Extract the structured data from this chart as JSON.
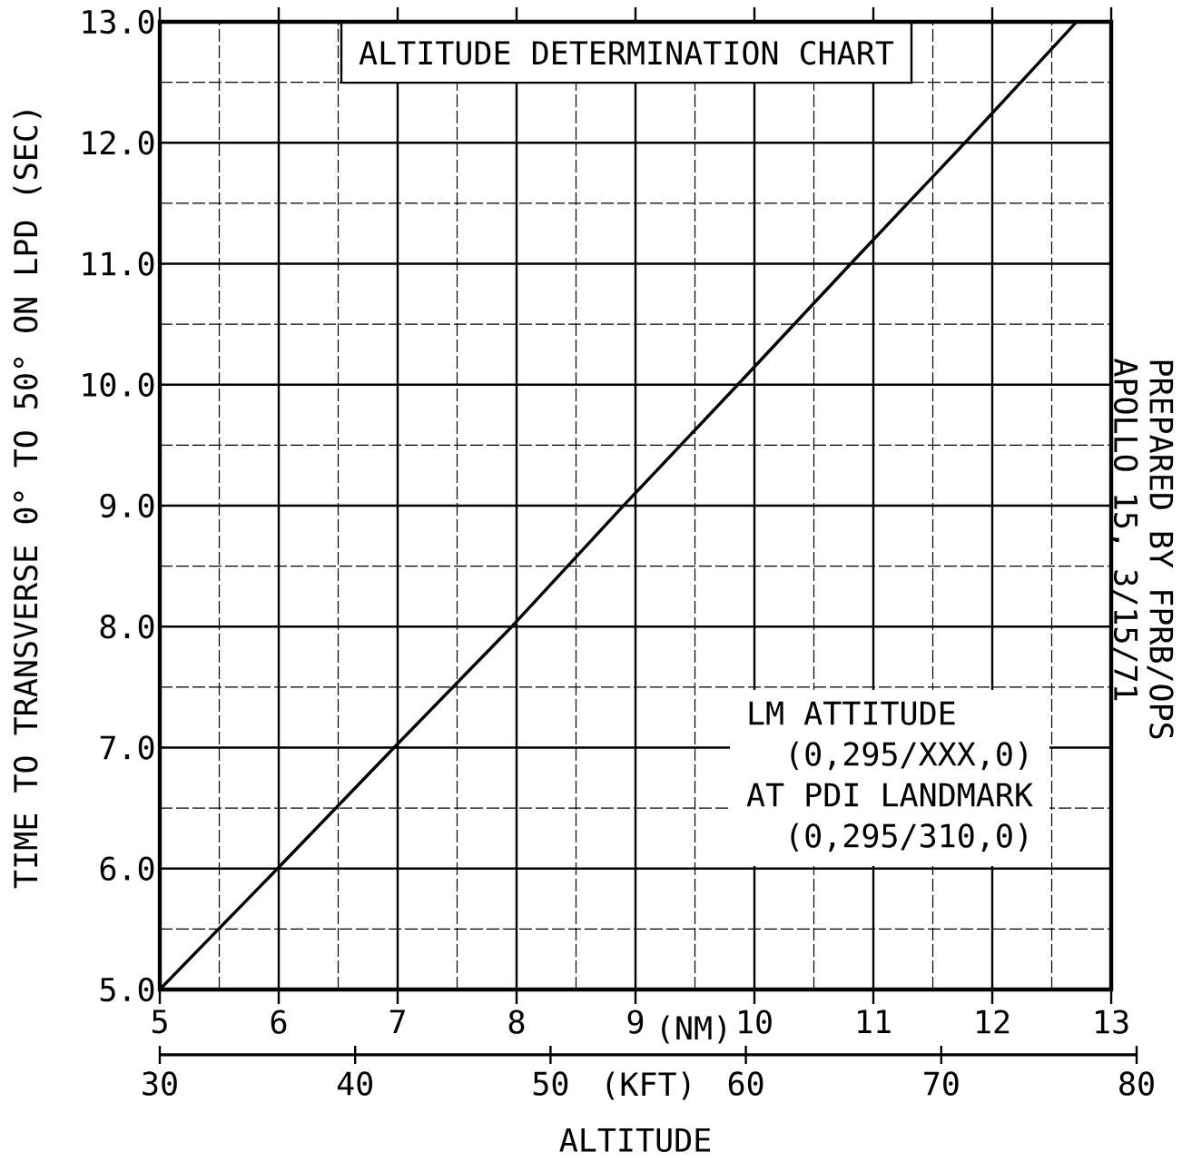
{
  "chart_data": {
    "type": "line",
    "title": "ALTITUDE DETERMINATION CHART",
    "xlabel": "ALTITUDE",
    "ylabel": "TIME TO TRANSVERSE 0° TO 50° ON LPD (SEC)",
    "x": [
      5.0,
      5.99,
      6.97,
      7.96,
      8.9,
      9.86,
      10.81,
      11.77,
      12.71
    ],
    "series": [
      {
        "color": "#000000",
        "values": [
          5.0,
          6.0,
          7.0,
          8.0,
          9.0,
          10.0,
          11.0,
          12.0,
          13.0
        ]
      }
    ],
    "xlim": [
      5,
      13
    ],
    "xticks": [
      5,
      6,
      7,
      8,
      9,
      10,
      11,
      12,
      13
    ],
    "ylim": [
      5,
      13
    ],
    "yticks": [
      {
        "value": 5,
        "label": "5.0"
      },
      {
        "value": 6,
        "label": "6.0"
      },
      {
        "value": 7,
        "label": "7.0"
      },
      {
        "value": 8,
        "label": "8.0"
      },
      {
        "value": 9,
        "label": "9.0"
      },
      {
        "value": 10,
        "label": "10.0"
      },
      {
        "value": 11,
        "label": "11.0"
      },
      {
        "value": 12,
        "label": "12.0"
      },
      {
        "value": 13,
        "label": "13.0"
      }
    ],
    "x2lim": [
      30,
      80
    ],
    "x2ticks": [
      30,
      40,
      50,
      60,
      70,
      80
    ],
    "annotations": [
      "(NM)",
      "(KFT)",
      "LM ATTITUDE",
      "(0,295/XXX,0)",
      "AT PDI LANDMARK",
      "(0,295/310,0)",
      "APOLLO 15, 3/15/71",
      "PREPARED BY FPRB/OPS"
    ],
    "grid": true,
    "line_style": "solid"
  }
}
